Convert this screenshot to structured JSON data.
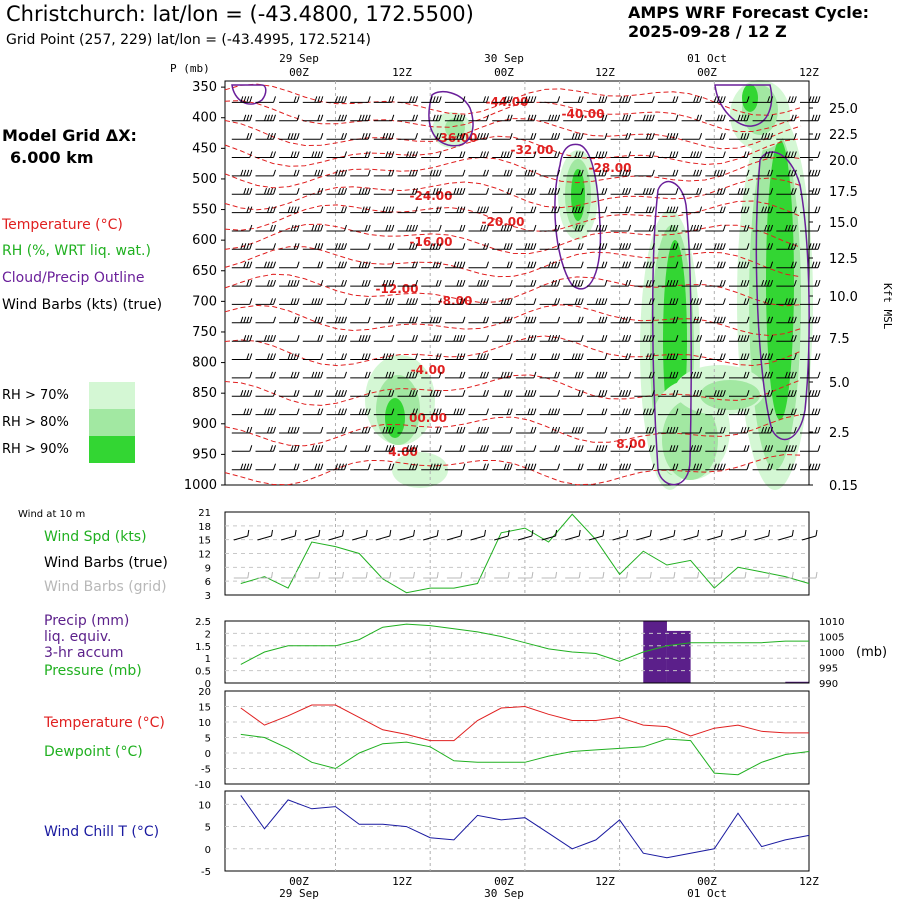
{
  "header": {
    "title": "Christchurch:  lat/lon = (-43.4800, 172.5500)",
    "grid_point": "Grid Point (257, 229) lat/lon = (-43.4995, 172.5214)",
    "cycle_label": "AMPS WRF Forecast Cycle:",
    "cycle_value": "2025-09-28 / 12  Z"
  },
  "model": {
    "label": "Model Grid ΔX:",
    "value": "6.000 km"
  },
  "legend": {
    "temperature": "Temperature (°C)",
    "rh": "RH (%, WRT liq. wat.)",
    "cloud": "Cloud/Precip Outline",
    "wind": "Wind Barbs (kts) (true)",
    "rh70": "RH > 70%",
    "rh80": "RH > 80%",
    "rh90": "RH > 90%"
  },
  "colors": {
    "temperature": "#e02020",
    "rh": "#20b020",
    "cloud": "#6a1f9a",
    "rh70": "#d4f7d4",
    "rh80": "#a2e8a2",
    "rh90": "#33d633",
    "chill": "#1a1aa0",
    "precip": "#5b1f8a"
  },
  "time_axis": {
    "top_dates": [
      "29 Sep",
      "30 Sep",
      "01 Oct"
    ],
    "ticks": [
      "00Z",
      "12Z",
      "00Z",
      "12Z",
      "00Z",
      "12Z"
    ],
    "bottom_dates": [
      "29 Sep",
      "30 Sep",
      "01 Oct"
    ]
  },
  "profile": {
    "p_label": "P (mb)",
    "p_ticks": [
      "350",
      "400",
      "450",
      "500",
      "550",
      "600",
      "650",
      "700",
      "750",
      "800",
      "850",
      "900",
      "950",
      "1000"
    ],
    "kft_label": "Kft MSL",
    "kft_ticks": [
      "25.0",
      "22.5",
      "20.0",
      "17.5",
      "15.0",
      "12.5",
      "10.0",
      "7.5",
      "5.0",
      "2.5",
      "0.15"
    ],
    "temp_labels": [
      "-44.00",
      "-40.00",
      "-36.00",
      "-32.00",
      "-28.00",
      "-24.00",
      "-20.00",
      "-16.00",
      "-12.00",
      "-8.00",
      "-4.00",
      "00.00",
      "4.00",
      "8.00"
    ]
  },
  "panels": {
    "wind_header": "Wind at 10 m",
    "wind_spd": "Wind Spd (kts)",
    "wind_true": "Wind Barbs (true)",
    "wind_grid": "Wind Barbs (grid)",
    "precip": "Precip (mm)",
    "liq": "liq. equiv.",
    "accum": "3-hr accum",
    "pressure": "Pressure (mb)",
    "mb_unit": "(mb)",
    "temperature": "Temperature (°C)",
    "dewpoint": "Dewpoint (°C)",
    "windchill": "Wind Chill T (°C)"
  },
  "chart_data": [
    {
      "type": "line",
      "title": "Wind at 10 m",
      "ylabel": "Wind Spd (kts)",
      "ylim": [
        3,
        21
      ],
      "yticks": [
        3,
        6,
        9,
        12,
        15,
        18,
        21
      ],
      "x_hours": [
        12,
        15,
        18,
        21,
        24,
        27,
        30,
        33,
        36,
        39,
        42,
        45,
        48,
        51,
        54,
        57,
        60,
        63,
        66,
        69,
        72,
        75,
        78,
        81,
        84
      ],
      "series": [
        {
          "name": "Wind Spd (kts)",
          "values": [
            5.5,
            7,
            4.5,
            14.5,
            13.5,
            12,
            6.5,
            3.5,
            4.5,
            4.5,
            5.5,
            16.5,
            17.5,
            14.5,
            20.5,
            15,
            7.5,
            12.5,
            9.5,
            10.5,
            4.5,
            9,
            8,
            7,
            5.5
          ]
        }
      ]
    },
    {
      "type": "bar",
      "title": "Precip (mm) liq. equiv. 3-hr accum",
      "ylim": [
        0,
        2.5
      ],
      "yticks": [
        0,
        0.5,
        1,
        1.5,
        2,
        2.5
      ],
      "bars": [
        {
          "start_hour": 63,
          "end_hour": 66,
          "value": 2.5
        },
        {
          "start_hour": 66,
          "end_hour": 69,
          "value": 2.1
        },
        {
          "start_hour": 81,
          "end_hour": 84,
          "value": 0.05
        }
      ]
    },
    {
      "type": "line",
      "title": "Pressure (mb)",
      "ylim": [
        990,
        1010
      ],
      "yticks": [
        990,
        995,
        1000,
        1005,
        1010
      ],
      "x_hours": [
        12,
        15,
        18,
        21,
        24,
        27,
        30,
        33,
        36,
        39,
        42,
        45,
        48,
        51,
        54,
        57,
        60,
        63,
        66,
        69,
        72,
        75,
        78,
        81,
        84
      ],
      "series": [
        {
          "name": "Pressure (mb)",
          "values": [
            996,
            1000,
            1002,
            1002,
            1002,
            1004,
            1008,
            1009,
            1008.5,
            1007.5,
            1006.5,
            1005,
            1003,
            1001,
            1000,
            999.5,
            997,
            1000,
            1002,
            1003,
            1003,
            1003,
            1003,
            1003.5,
            1003.5
          ]
        }
      ]
    },
    {
      "type": "line",
      "title": "Temperature / Dewpoint",
      "ylim": [
        -10,
        20
      ],
      "yticks": [
        -10,
        -5,
        0,
        5,
        10,
        15,
        20
      ],
      "x_hours": [
        12,
        15,
        18,
        21,
        24,
        27,
        30,
        33,
        36,
        39,
        42,
        45,
        48,
        51,
        54,
        57,
        60,
        63,
        66,
        69,
        72,
        75,
        78,
        81,
        84
      ],
      "series": [
        {
          "name": "Temperature (°C)",
          "values": [
            14.5,
            9,
            12,
            15.5,
            15.5,
            11.5,
            7.5,
            6,
            4,
            4,
            10.5,
            14.5,
            15,
            12.5,
            10.5,
            10.5,
            11.5,
            9,
            8.5,
            5.5,
            8,
            9,
            7,
            6.5,
            6.5
          ]
        },
        {
          "name": "Dewpoint (°C)",
          "values": [
            6,
            5,
            1.5,
            -3,
            -5,
            0,
            3,
            3.5,
            2,
            -2.5,
            -3,
            -3,
            -3,
            -1,
            0.5,
            1,
            1.5,
            2,
            4.5,
            4,
            -6.5,
            -7,
            -3,
            -0.5,
            0.5
          ]
        }
      ]
    },
    {
      "type": "line",
      "title": "Wind Chill T",
      "ylim": [
        -5,
        13
      ],
      "yticks": [
        -5,
        0,
        5,
        10
      ],
      "x_hours": [
        12,
        15,
        18,
        21,
        24,
        27,
        30,
        33,
        36,
        39,
        42,
        45,
        48,
        51,
        54,
        57,
        60,
        63,
        66,
        69,
        72,
        75,
        78,
        81,
        84
      ],
      "series": [
        {
          "name": "Wind Chill T (°C)",
          "values": [
            12,
            4.5,
            11,
            9,
            9.5,
            5.5,
            5.5,
            5,
            2.5,
            2,
            7.5,
            6.5,
            7,
            3.5,
            0,
            2,
            6.5,
            -1,
            -2,
            -1,
            0,
            8,
            0.5,
            2,
            3
          ]
        }
      ]
    }
  ]
}
